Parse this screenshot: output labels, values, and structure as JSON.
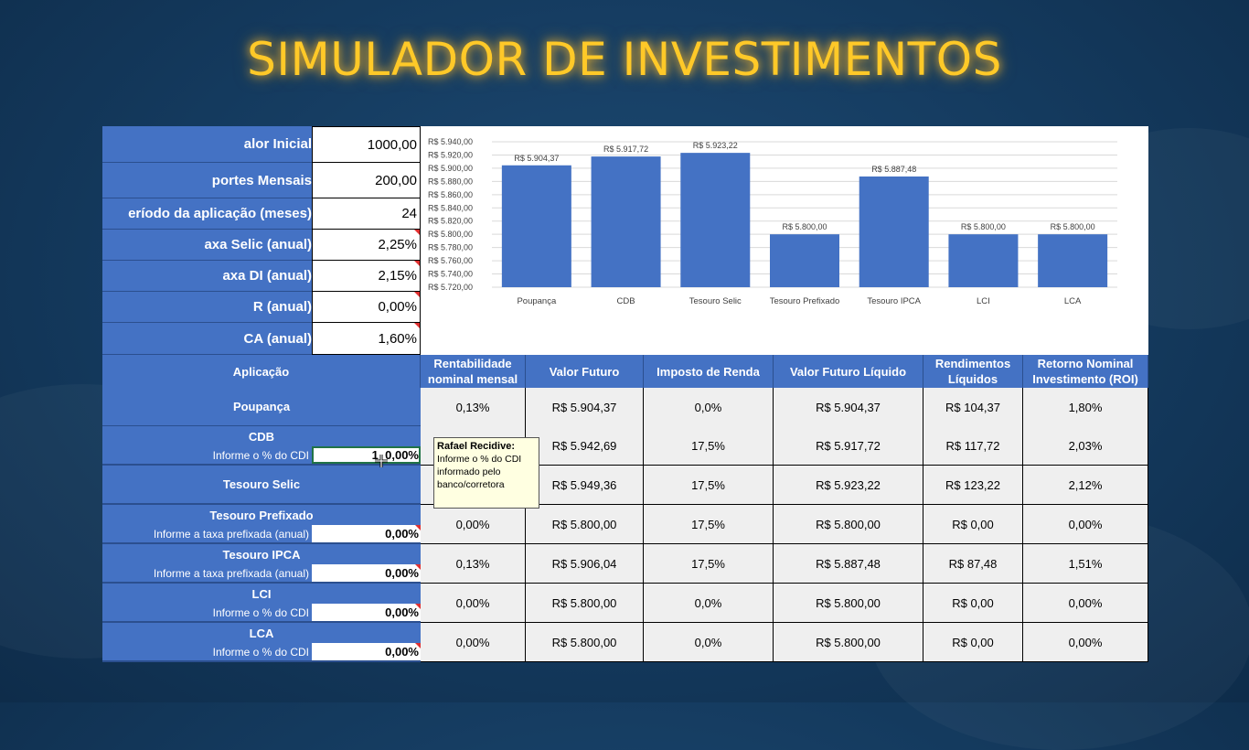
{
  "title": "SIMULADOR DE INVESTIMENTOS",
  "params": [
    {
      "label": "alor Inicial",
      "value": "1000,00",
      "flag": false
    },
    {
      "label": "portes Mensais",
      "value": "200,00",
      "flag": false
    },
    {
      "label": "eríodo da aplicação (meses)",
      "value": "24",
      "flag": false
    },
    {
      "label": "axa Selic (anual)",
      "value": "2,25%",
      "flag": true
    },
    {
      "label": "axa DI (anual)",
      "value": "2,15%",
      "flag": true
    },
    {
      "label": "R (anual)",
      "value": "0,00%",
      "flag": true
    },
    {
      "label": "CA (anual)",
      "value": "1,60%",
      "flag": true
    }
  ],
  "table": {
    "headers": [
      "Aplicação",
      "Rentabilidade nominal mensal",
      "Valor Futuro",
      "Imposto de Renda",
      "Valor Futuro Líquido",
      "Rendimentos Líquidos",
      "Retorno Nominal Investimento (ROI)"
    ],
    "rows": [
      {
        "name": "Poupança",
        "sub": "",
        "input": "",
        "cells": [
          "0,13%",
          "R$ 5.904,37",
          "0,0%",
          "R$ 5.904,37",
          "R$ 104,37",
          "1,80%"
        ]
      },
      {
        "name": "CDB",
        "sub": "Informe o % do CDI",
        "input": "1_0,00%",
        "cells": [
          "",
          "R$ 5.942,69",
          "17,5%",
          "R$ 5.917,72",
          "R$ 117,72",
          "2,03%"
        ]
      },
      {
        "name": "Tesouro Selic",
        "sub": "",
        "input": "",
        "cells": [
          "",
          "R$ 5.949,36",
          "17,5%",
          "R$ 5.923,22",
          "R$ 123,22",
          "2,12%"
        ]
      },
      {
        "name": "Tesouro Prefixado",
        "sub": "Informe a taxa prefixada (anual)",
        "input": "0,00%",
        "cells": [
          "0,00%",
          "R$ 5.800,00",
          "17,5%",
          "R$ 5.800,00",
          "R$ 0,00",
          "0,00%"
        ]
      },
      {
        "name": "Tesouro IPCA",
        "sub": "Informe a taxa prefixada (anual)",
        "input": "0,00%",
        "cells": [
          "0,13%",
          "R$ 5.906,04",
          "17,5%",
          "R$ 5.887,48",
          "R$ 87,48",
          "1,51%"
        ]
      },
      {
        "name": "LCI",
        "sub": "Informe o % do CDI",
        "input": "0,00%",
        "cells": [
          "0,00%",
          "R$ 5.800,00",
          "0,0%",
          "R$ 5.800,00",
          "R$ 0,00",
          "0,00%"
        ]
      },
      {
        "name": "LCA",
        "sub": "Informe o % do CDI",
        "input": "0,00%",
        "cells": [
          "0,00%",
          "R$ 5.800,00",
          "0,0%",
          "R$ 5.800,00",
          "R$ 0,00",
          "0,00%"
        ]
      }
    ]
  },
  "tooltip": {
    "author": "Rafael Recidive:",
    "text": [
      "Informe o % do CDI",
      "informado pelo",
      "banco/corretora"
    ]
  },
  "colors": {
    "accent": "#4472c4",
    "title": "#ffc928",
    "background": "#143a5e"
  },
  "chart_data": {
    "type": "bar",
    "categories": [
      "Poupança",
      "CDB",
      "Tesouro Selic",
      "Tesouro Prefixado",
      "Tesouro IPCA",
      "LCI",
      "LCA"
    ],
    "values": [
      5904.37,
      5917.72,
      5923.22,
      5800.0,
      5887.48,
      5800.0,
      5800.0
    ],
    "value_labels": [
      "R$ 5.904,37",
      "R$ 5.917,72",
      "R$ 5.923,22",
      "R$ 5.800,00",
      "R$ 5.887,48",
      "R$ 5.800,00",
      "R$ 5.800,00"
    ],
    "ylim": [
      5720,
      5940
    ],
    "yticks": [
      5940,
      5920,
      5900,
      5880,
      5860,
      5840,
      5820,
      5800,
      5780,
      5760,
      5740,
      5720
    ],
    "ytick_labels": [
      "R$ 5.940,00",
      "R$ 5.920,00",
      "R$ 5.900,00",
      "R$ 5.880,00",
      "R$ 5.860,00",
      "R$ 5.840,00",
      "R$ 5.820,00",
      "R$ 5.800,00",
      "R$ 5.780,00",
      "R$ 5.760,00",
      "R$ 5.740,00",
      "R$ 5.720,00"
    ],
    "color": "#4472c4",
    "grid": true,
    "title": "",
    "xlabel": "",
    "ylabel": ""
  }
}
